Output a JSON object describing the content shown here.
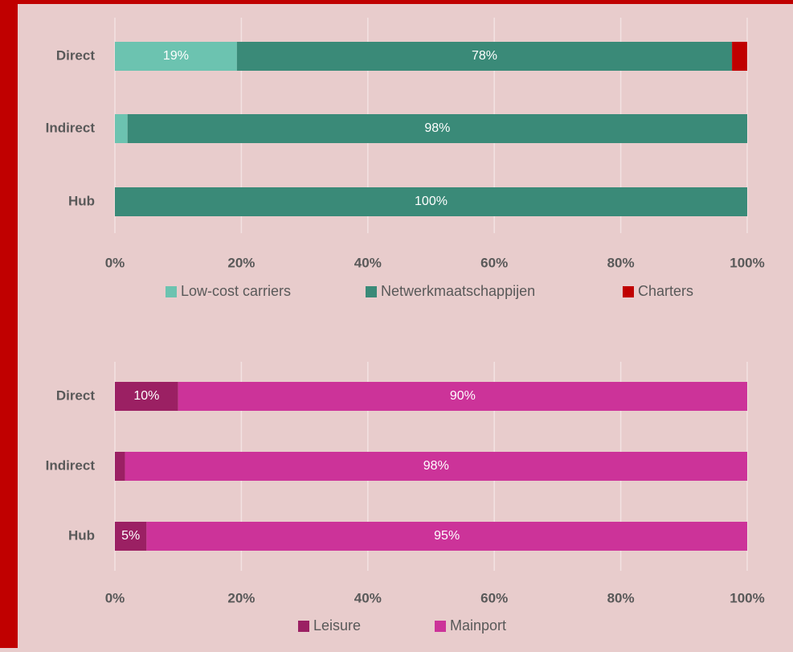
{
  "chart_data": [
    {
      "type": "bar",
      "orientation": "horizontal",
      "stacked": true,
      "categories": [
        "Direct",
        "Indirect",
        "Hub"
      ],
      "series": [
        {
          "name": "Low-cost carriers",
          "color": "#6cc3b0",
          "values": [
            19.3,
            2,
            0
          ],
          "value_labels": [
            "19%",
            null,
            null
          ]
        },
        {
          "name": "Netwerkmaatschappijen",
          "color": "#3a8a78",
          "values": [
            78.3,
            98,
            100
          ],
          "value_labels": [
            "78%",
            "98%",
            "100%"
          ]
        },
        {
          "name": "Charters",
          "color": "#c00000",
          "values": [
            2.4,
            0,
            0
          ],
          "value_labels": [
            null,
            null,
            null
          ]
        }
      ],
      "xlim": [
        0,
        100
      ],
      "xticks": [
        {
          "value": 0,
          "label": "0%"
        },
        {
          "value": 20,
          "label": "20%"
        },
        {
          "value": 40,
          "label": "40%"
        },
        {
          "value": 60,
          "label": "60%"
        },
        {
          "value": 80,
          "label": "80%"
        },
        {
          "value": 100,
          "label": "100%"
        }
      ],
      "grid": true,
      "legend": "bottom"
    },
    {
      "type": "bar",
      "orientation": "horizontal",
      "stacked": true,
      "categories": [
        "Direct",
        "Indirect",
        "Hub"
      ],
      "series": [
        {
          "name": "Leisure",
          "color": "#9b2063",
          "values": [
            10,
            1.6,
            5
          ],
          "value_labels": [
            "10%",
            null,
            "5%"
          ]
        },
        {
          "name": "Mainport",
          "color": "#cc3399",
          "values": [
            90,
            98.4,
            95
          ],
          "value_labels": [
            "90%",
            "98%",
            "95%"
          ]
        }
      ],
      "xlim": [
        0,
        100
      ],
      "xticks": [
        {
          "value": 0,
          "label": "0%"
        },
        {
          "value": 20,
          "label": "20%"
        },
        {
          "value": 40,
          "label": "40%"
        },
        {
          "value": 60,
          "label": "60%"
        },
        {
          "value": 80,
          "label": "80%"
        },
        {
          "value": 100,
          "label": "100%"
        }
      ],
      "grid": true,
      "legend": "bottom"
    }
  ]
}
